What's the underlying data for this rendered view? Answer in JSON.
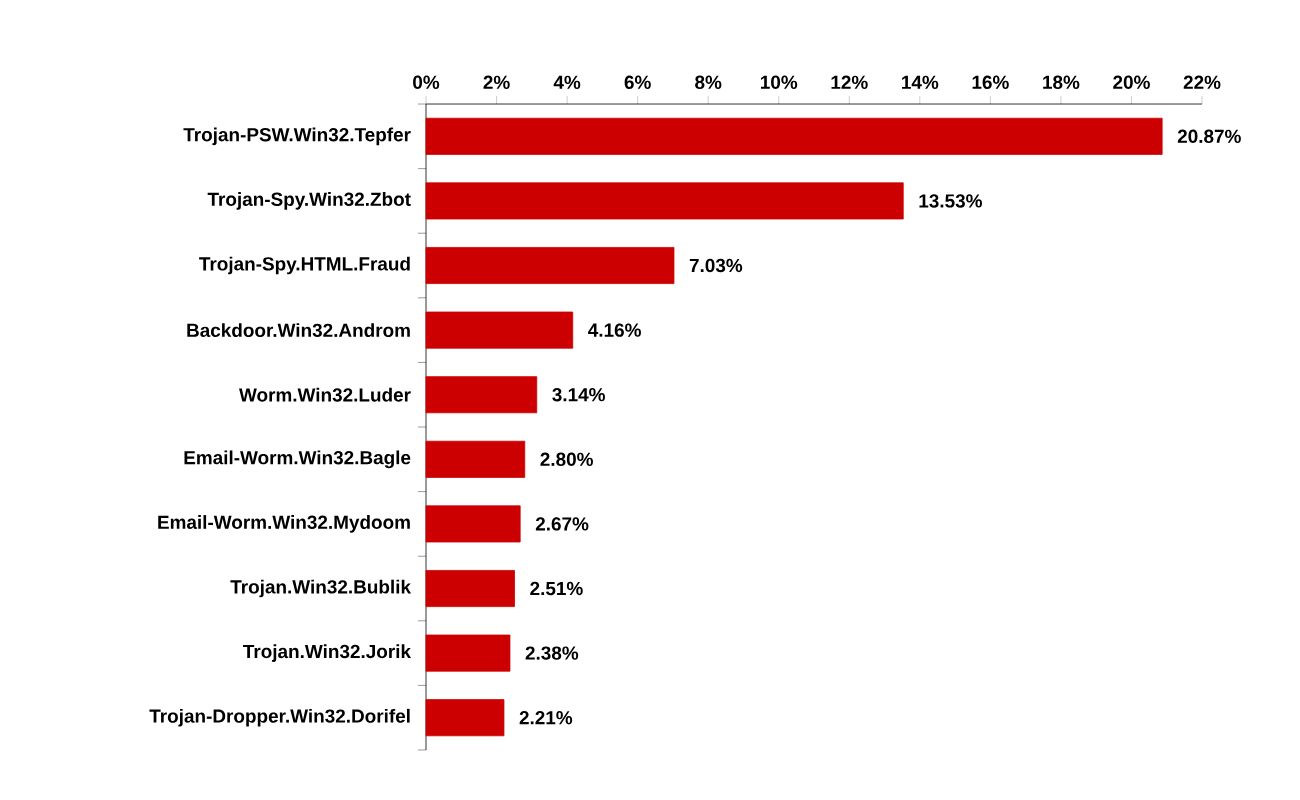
{
  "chart_data": {
    "type": "bar",
    "orientation": "horizontal",
    "categories": [
      "Trojan-PSW.Win32.Tepfer",
      "Trojan-Spy.Win32.Zbot",
      "Trojan-Spy.HTML.Fraud",
      "Backdoor.Win32.Androm",
      "Worm.Win32.Luder",
      "Email-Worm.Win32.Bagle",
      "Email-Worm.Win32.Mydoom",
      "Trojan.Win32.Bublik",
      "Trojan.Win32.Jorik",
      "Trojan-Dropper.Win32.Dorifel"
    ],
    "values": [
      20.87,
      13.53,
      7.03,
      4.16,
      3.14,
      2.8,
      2.67,
      2.51,
      2.38,
      2.21
    ],
    "value_labels": [
      "20.87%",
      "13.53%",
      "7.03%",
      "4.16%",
      "3.14%",
      "2.80%",
      "2.67%",
      "2.51%",
      "2.38%",
      "2.21%"
    ],
    "color": "#cc0000",
    "xlim": [
      0,
      22
    ],
    "xticks": [
      {
        "value": 0,
        "label": "0%"
      },
      {
        "value": 2,
        "label": "2%"
      },
      {
        "value": 4,
        "label": "4%"
      },
      {
        "value": 6,
        "label": "6%"
      },
      {
        "value": 8,
        "label": "8%"
      },
      {
        "value": 10,
        "label": "10%"
      },
      {
        "value": 12,
        "label": "12%"
      },
      {
        "value": 14,
        "label": "14%"
      },
      {
        "value": 16,
        "label": "16%"
      },
      {
        "value": 18,
        "label": "18%"
      },
      {
        "value": 20,
        "label": "20%"
      },
      {
        "value": 22,
        "label": "22%"
      }
    ]
  }
}
